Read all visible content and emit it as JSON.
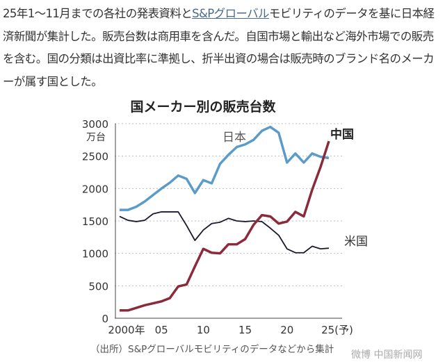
{
  "article": {
    "text_before_link": "25年1～11月までの各社の発表資料と",
    "link": "S&Pグローバル",
    "text_after_link": "モビリティのデータを基に日本経済新聞が集計した。販売台数は商用車を含んだ。自国市場と輸出など海外市場での販売を含む。国の分類は出資比率に準拠し、折半出資の場合は販売時のブランド名のメーカーが属す国とした。"
  },
  "watermark": "微博 中国新闻网",
  "chart_data": {
    "type": "line",
    "title": "国メーカー別の販売台数",
    "ylabel": "万台",
    "ylim": [
      0,
      3000
    ],
    "yticks": [
      "0",
      "500",
      "1000",
      "1500",
      "2000",
      "2500",
      "3000"
    ],
    "xticks": [
      "2000年",
      "05",
      "10",
      "15",
      "20",
      "25(予)"
    ],
    "grid": "horizontal dashed",
    "x": [
      2000,
      2001,
      2002,
      2003,
      2004,
      2005,
      2006,
      2007,
      2008,
      2009,
      2010,
      2011,
      2012,
      2013,
      2014,
      2015,
      2016,
      2017,
      2018,
      2019,
      2020,
      2021,
      2022,
      2023,
      2024,
      2025
    ],
    "series": [
      {
        "name": "日本",
        "color": "#5b9bc9",
        "values": [
          1670,
          1670,
          1720,
          1800,
          1900,
          2000,
          2090,
          2200,
          2150,
          1930,
          2130,
          2080,
          2380,
          2520,
          2640,
          2680,
          2750,
          2890,
          2950,
          2860,
          2400,
          2540,
          2400,
          2540,
          2490,
          2470
        ]
      },
      {
        "name": "米国",
        "color": "#1a1a2e",
        "values": [
          1570,
          1510,
          1490,
          1510,
          1610,
          1640,
          1640,
          1640,
          1430,
          1200,
          1360,
          1460,
          1480,
          1540,
          1500,
          1490,
          1500,
          1490,
          1390,
          1280,
          1070,
          1010,
          1010,
          1110,
          1070,
          1080
        ]
      },
      {
        "name": "中国",
        "color": "#8b2a3a",
        "values": [
          120,
          120,
          160,
          200,
          230,
          260,
          310,
          490,
          520,
          800,
          1070,
          1010,
          1000,
          1140,
          1140,
          1220,
          1440,
          1590,
          1570,
          1460,
          1490,
          1640,
          1570,
          1980,
          2330,
          2730
        ]
      }
    ],
    "source": "（出所）S&Pグローバルモビリティのデータなどから集計"
  }
}
